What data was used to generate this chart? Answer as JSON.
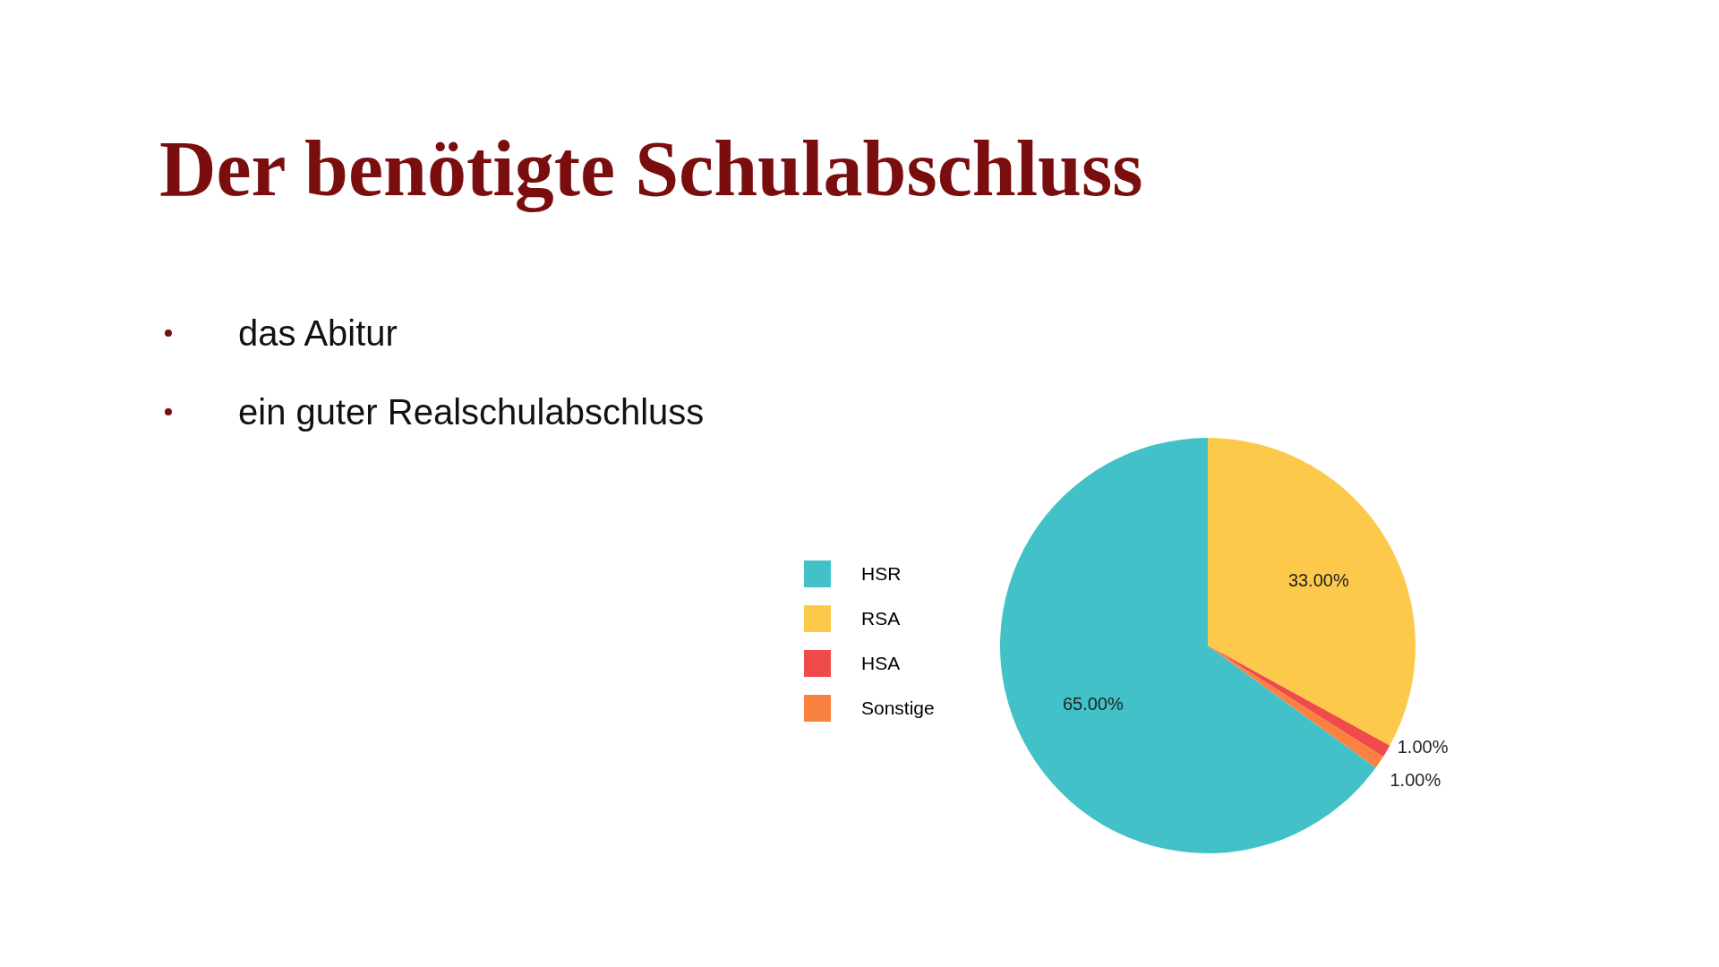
{
  "chart_data": {
    "type": "pie",
    "title": "Der benötigte Schulabschluss",
    "annotations": [
      "das Abitur",
      "ein guter Realschulabschluss"
    ],
    "categories": [
      "HSR",
      "RSA",
      "HSA",
      "Sonstige"
    ],
    "values": [
      65,
      33,
      1,
      1
    ],
    "colors": [
      "#42c2c8",
      "#fdc94a",
      "#ef4b4b",
      "#fb8140"
    ],
    "value_labels": [
      "65.00%",
      "33.00%",
      "1.00%",
      "1.00%"
    ],
    "legend": "left"
  }
}
